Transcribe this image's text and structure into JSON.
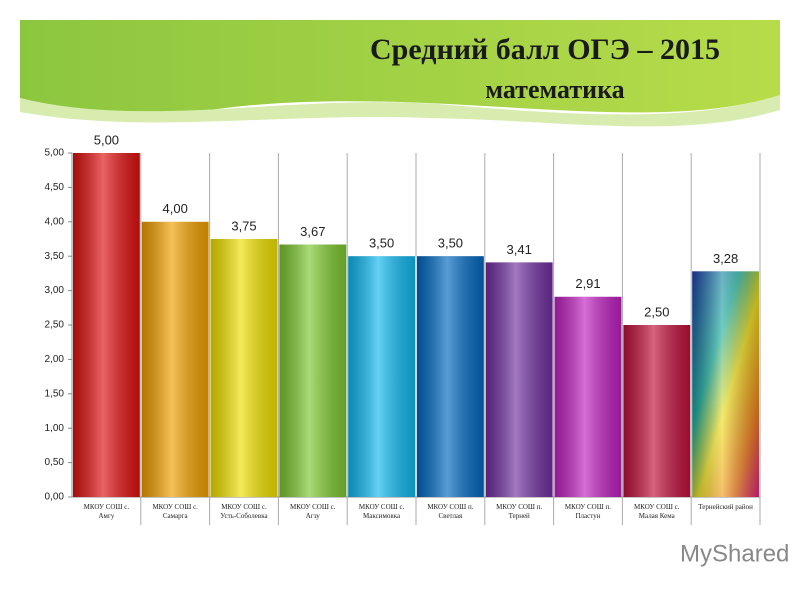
{
  "chart_data": {
    "type": "bar",
    "title": "Средний балл ОГЭ – 2015",
    "subtitle": "математика",
    "categories": [
      "МКОУ СОШ с. Амгу",
      "МКОУ СОШ с. Самарга",
      "МКОУ СОШ с. Усть-Соболевка",
      "МКОУ СОШ с. Агзу",
      "МКОУ СОШ с. Максимовка",
      "МКОУ СОШ п. Светлая",
      "МКОУ СОШ п. Терней",
      "МКОУ СОШ п. Пластун",
      "МКОУ СОШ с. Малая Кема",
      "Тернейский район"
    ],
    "values": [
      5.0,
      4.0,
      3.75,
      3.67,
      3.5,
      3.5,
      3.41,
      2.91,
      2.5,
      3.28
    ],
    "value_labels": [
      "5,00",
      "4,00",
      "3,75",
      "3,67",
      "3,50",
      "3,50",
      "3,41",
      "2,91",
      "2,50",
      "3,28"
    ],
    "colors": [
      "#e01010",
      "#f0a000",
      "#f0e000",
      "#7dc830",
      "#10b8f0",
      "#0068c0",
      "#7030a0",
      "#c020c0",
      "#c0103a",
      "#2080c0"
    ],
    "ylim": [
      0,
      5
    ],
    "yticks": [
      {
        "value": 0,
        "label": "0,00"
      },
      {
        "value": 0.5,
        "label": "0,50"
      },
      {
        "value": 1,
        "label": "1,00"
      },
      {
        "value": 1.5,
        "label": "1,50"
      },
      {
        "value": 2,
        "label": "2,00"
      },
      {
        "value": 2.5,
        "label": "2,50"
      },
      {
        "value": 3,
        "label": "3,00"
      },
      {
        "value": 3.5,
        "label": "3,50"
      },
      {
        "value": 4,
        "label": "4,00"
      },
      {
        "value": 4.5,
        "label": "4,50"
      },
      {
        "value": 5,
        "label": "5,00"
      }
    ],
    "watermark": "MyShared"
  }
}
